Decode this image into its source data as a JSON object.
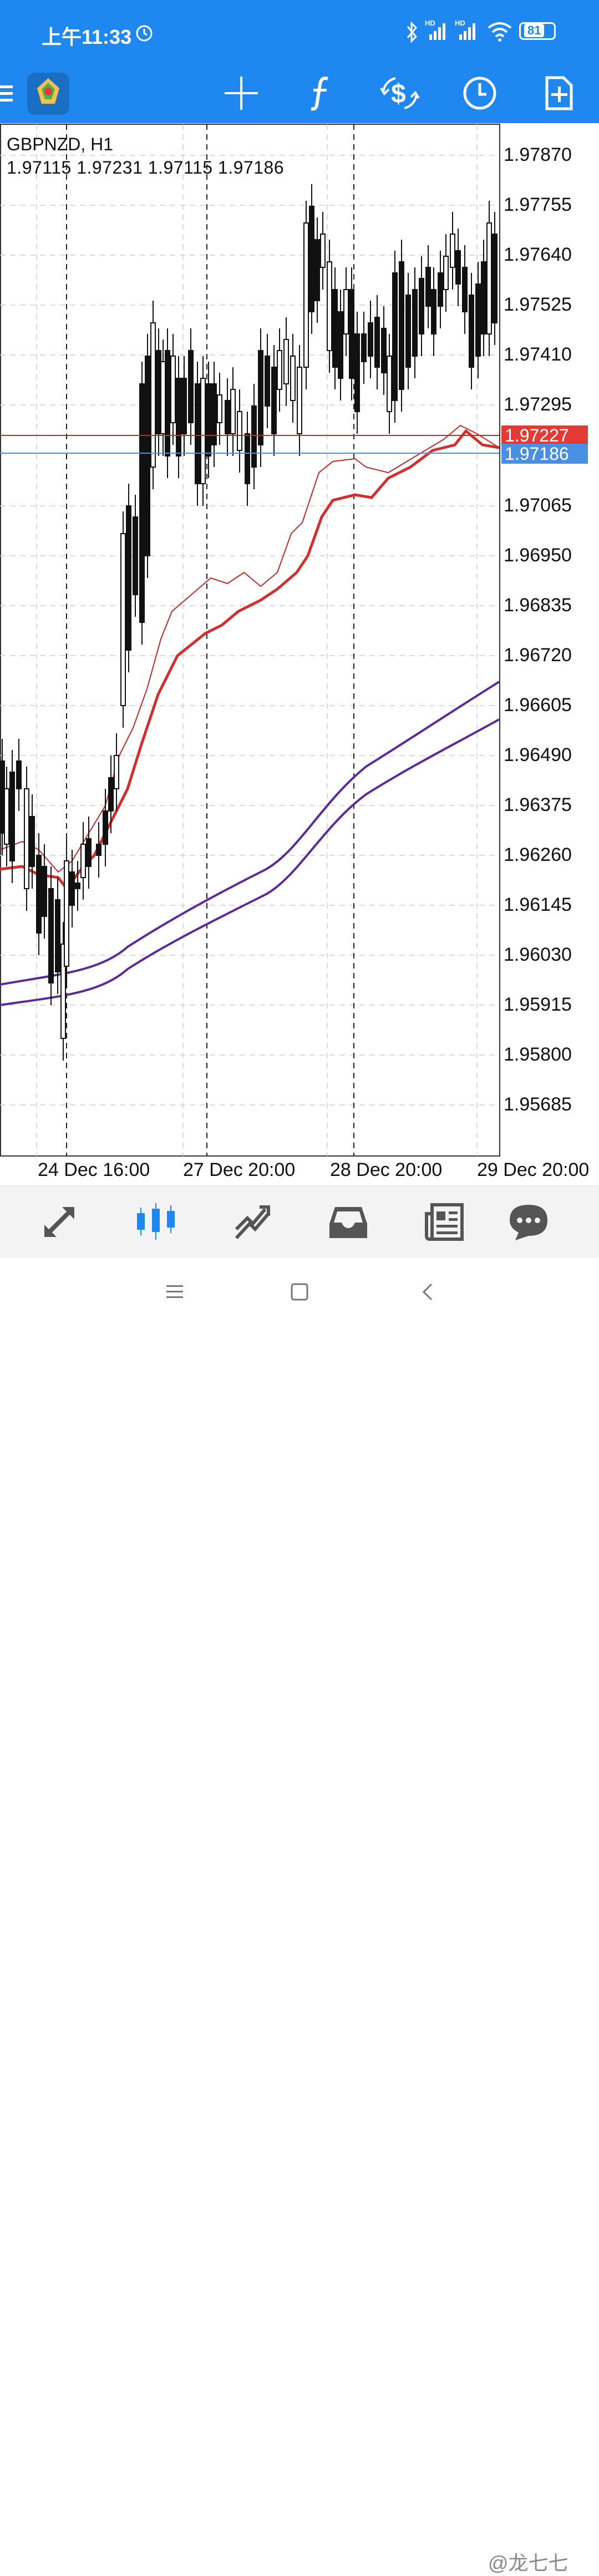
{
  "status": {
    "time": "上午11:33",
    "battery": "81",
    "net1": "HD",
    "net2": "HD"
  },
  "toolbar": {
    "menu_icon": "menu-icon",
    "app_icon": "app-logo",
    "tools": [
      "crosshair-icon",
      "indicators-icon",
      "trade-icon",
      "timeframe-icon",
      "objects-icon"
    ]
  },
  "chart": {
    "symbol_label": "GBPNZD, H1",
    "ohlc_label": "1.97115 1.97231 1.97115 1.97186",
    "price_axis": [
      "1.97870",
      "1.97755",
      "1.97640",
      "1.97525",
      "1.97410",
      "1.97295",
      "1.97065",
      "1.96950",
      "1.96835",
      "1.96720",
      "1.96605",
      "1.96490",
      "1.96375",
      "1.96260",
      "1.96145",
      "1.96030",
      "1.95915",
      "1.95800",
      "1.95685"
    ],
    "red_line_price": "1.97227",
    "bid_price": "1.97186",
    "time_axis": [
      "24 Dec 16:00",
      "27 Dec 20:00",
      "28 Dec 20:00",
      "29 Dec 20:00"
    ],
    "colors": {
      "bid_tag": "#4a90e2",
      "line_tag": "#e53935",
      "ma_fast": "#c0392b",
      "ma_slow": "#5b2a9a"
    }
  },
  "bottom_nav": [
    {
      "name": "quotes-icon",
      "active": false
    },
    {
      "name": "chart-icon",
      "active": true
    },
    {
      "name": "trade-icon",
      "active": false
    },
    {
      "name": "history-icon",
      "active": false
    },
    {
      "name": "news-icon",
      "active": false
    },
    {
      "name": "chat-icon",
      "active": false
    }
  ],
  "watermark": "@龙七七"
}
